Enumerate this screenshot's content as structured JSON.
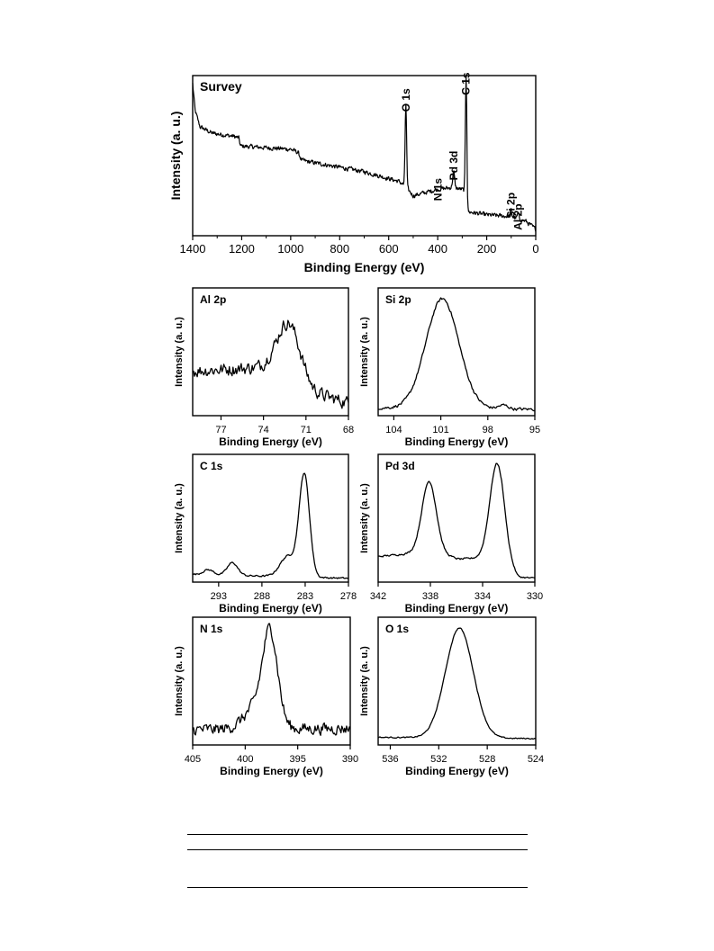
{
  "chart_data": [
    {
      "type": "line",
      "title": "Survey",
      "xlabel": "Binding Energy (eV)",
      "ylabel": "Intensity (a. u.)",
      "xlim": [
        1400,
        0
      ],
      "x_reversed": true,
      "xticks": [
        "1400",
        "1200",
        "1000",
        "800",
        "600",
        "400",
        "200",
        "0"
      ],
      "yticks": [],
      "noise": 0.012,
      "series": [
        {
          "baseline": [
            [
              1400,
              0.95
            ],
            [
              1390,
              0.78
            ],
            [
              1370,
              0.68
            ],
            [
              1320,
              0.64
            ],
            [
              1230,
              0.62
            ],
            [
              1212,
              0.61
            ],
            [
              1205,
              0.56
            ],
            [
              1000,
              0.54
            ],
            [
              970,
              0.52
            ],
            [
              955,
              0.47
            ],
            [
              700,
              0.4
            ],
            [
              560,
              0.34
            ],
            [
              540,
              0.32
            ],
            [
              500,
              0.25
            ],
            [
              400,
              0.29
            ],
            [
              345,
              0.3
            ],
            [
              300,
              0.29
            ],
            [
              285,
              0.27
            ],
            [
              278,
              0.15
            ],
            [
              200,
              0.13
            ],
            [
              100,
              0.12
            ],
            [
              40,
              0.09
            ],
            [
              0,
              0.04
            ]
          ],
          "peaks": [
            {
              "x": 530,
              "h": 0.52,
              "w": 3
            },
            {
              "x": 335,
              "h": 0.1,
              "w": 4
            },
            {
              "x": 284,
              "h": 0.75,
              "w": 3
            },
            {
              "x": 101,
              "h": 0.04,
              "w": 3
            },
            {
              "x": 72,
              "h": 0.03,
              "w": 3
            }
          ]
        }
      ],
      "annotations": [
        {
          "text": "O 1s",
          "x": 530,
          "y": 0.92
        },
        {
          "text": "C 1s",
          "x": 284,
          "y": 1.02
        },
        {
          "text": "Pd 3d",
          "x": 335,
          "y": 0.53
        },
        {
          "text": "N 1s",
          "x": 398,
          "y": 0.36
        },
        {
          "text": "Si 2p",
          "x": 101,
          "y": 0.27
        },
        {
          "text": "Al 2p",
          "x": 72,
          "y": 0.2
        }
      ]
    },
    {
      "type": "line",
      "title": "Al 2p",
      "xlabel": "Binding Energy (eV)",
      "ylabel": "Intensity (a. u.)",
      "xlim": [
        79,
        68
      ],
      "x_reversed": true,
      "xticks": [
        "77",
        "74",
        "71",
        "68"
      ],
      "yticks": [],
      "noise": 0.045,
      "series": [
        {
          "baseline": [
            [
              79,
              0.35
            ],
            [
              73.5,
              0.38
            ],
            [
              70.5,
              0.18
            ],
            [
              68,
              0.1
            ]
          ],
          "peaks": [
            {
              "x": 72.2,
              "h": 0.43,
              "w": 0.8
            }
          ]
        }
      ]
    },
    {
      "type": "line",
      "title": "Si 2p",
      "xlabel": "Binding Energy (eV)",
      "ylabel": "Intensity (a. u.)",
      "xlim": [
        105,
        95
      ],
      "x_reversed": true,
      "xticks": [
        "104",
        "101",
        "98",
        "95"
      ],
      "yticks": [],
      "noise": 0.01,
      "series": [
        {
          "baseline": [
            [
              105,
              0.06
            ],
            [
              95,
              0.05
            ]
          ],
          "peaks": [
            {
              "x": 100.9,
              "h": 0.86,
              "w": 1.05
            },
            {
              "x": 97.0,
              "h": 0.03,
              "w": 0.3
            }
          ]
        }
      ]
    },
    {
      "type": "line",
      "title": "C 1s",
      "xlabel": "Binding Energy (eV)",
      "ylabel": "Intensity (a. u.)",
      "xlim": [
        296,
        278
      ],
      "x_reversed": true,
      "xticks": [
        "293",
        "288",
        "283",
        "278"
      ],
      "yticks": [],
      "noise": 0.006,
      "series": [
        {
          "baseline": [
            [
              296,
              0.06
            ],
            [
              278,
              0.03
            ]
          ],
          "peaks": [
            {
              "x": 294.2,
              "h": 0.04,
              "w": 0.6
            },
            {
              "x": 291.4,
              "h": 0.1,
              "w": 0.6
            },
            {
              "x": 285.0,
              "h": 0.16,
              "w": 0.9
            },
            {
              "x": 283.1,
              "h": 0.8,
              "w": 0.6
            }
          ]
        }
      ]
    },
    {
      "type": "line",
      "title": "Pd 3d",
      "xlabel": "Binding Energy (eV)",
      "ylabel": "Intensity (a. u.)",
      "xlim": [
        342,
        330
      ],
      "x_reversed": true,
      "xticks": [
        "342",
        "338",
        "334",
        "330"
      ],
      "yticks": [],
      "noise": 0.006,
      "series": [
        {
          "baseline": [
            [
              342,
              0.2
            ],
            [
              338,
              0.24
            ],
            [
              335.8,
              0.18
            ],
            [
              332.5,
              0.2
            ],
            [
              331.3,
              0.04
            ],
            [
              330,
              0.03
            ]
          ],
          "peaks": [
            {
              "x": 338.1,
              "h": 0.55,
              "w": 0.55
            },
            {
              "x": 332.9,
              "h": 0.73,
              "w": 0.55
            }
          ]
        }
      ]
    },
    {
      "type": "line",
      "title": "N 1s",
      "xlabel": "Binding Energy (eV)",
      "ylabel": "Intensity (a. u.)",
      "xlim": [
        405,
        390
      ],
      "x_reversed": true,
      "xticks": [
        "405",
        "400",
        "395",
        "390"
      ],
      "yticks": [],
      "noise": 0.04,
      "series": [
        {
          "baseline": [
            [
              405,
              0.12
            ],
            [
              390,
              0.13
            ]
          ],
          "peaks": [
            {
              "x": 397.6,
              "h": 0.68,
              "w": 0.7
            },
            {
              "x": 398.8,
              "h": 0.18,
              "w": 1.2
            }
          ]
        }
      ]
    },
    {
      "type": "line",
      "title": "O 1s",
      "xlabel": "Binding Energy (eV)",
      "ylabel": "Intensity (a. u.)",
      "xlim": [
        537,
        524
      ],
      "x_reversed": true,
      "xticks": [
        "536",
        "532",
        "528",
        "524"
      ],
      "yticks": [],
      "noise": 0.004,
      "series": [
        {
          "baseline": [
            [
              537,
              0.06
            ],
            [
              524,
              0.05
            ]
          ],
          "peaks": [
            {
              "x": 530.3,
              "h": 0.86,
              "w": 1.15
            }
          ]
        }
      ]
    }
  ]
}
